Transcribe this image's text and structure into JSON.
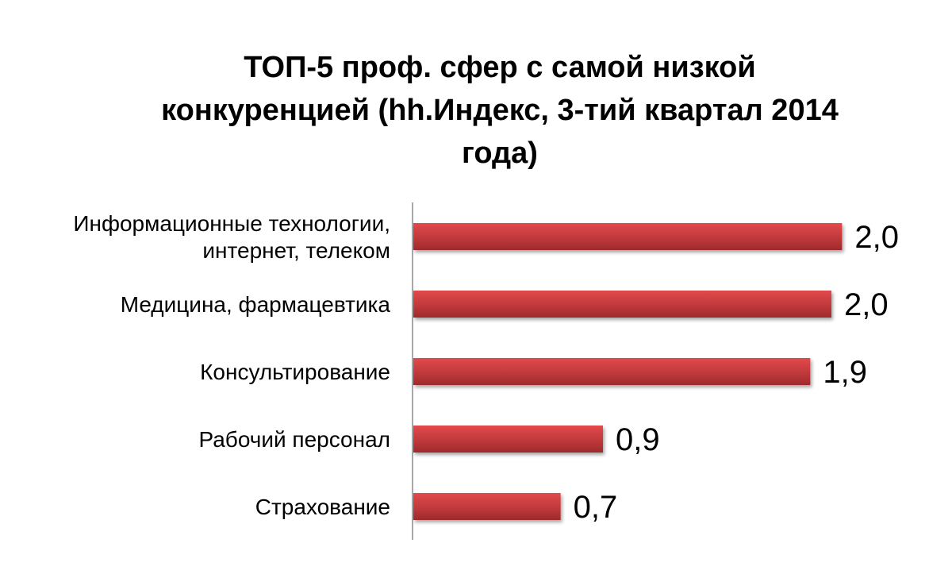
{
  "chart_data": {
    "type": "bar",
    "orientation": "horizontal",
    "title_lines": [
      "ТОП-5 проф. сфер с самой низкой",
      "конкуренцией (hh.Индекс, 3-тий квартал 2014",
      "года)"
    ],
    "categories": [
      [
        "Информационные технологии,",
        "интернет, телеком"
      ],
      [
        "Медицина, фармацевтика"
      ],
      [
        "Консультирование"
      ],
      [
        "Рабочий персонал"
      ],
      [
        "Страхование"
      ]
    ],
    "values": [
      2.03,
      1.98,
      1.88,
      0.9,
      0.7
    ],
    "value_labels": [
      "2,0",
      "2,0",
      "1,9",
      "0,9",
      "0,7"
    ],
    "xlim": [
      0,
      2.1
    ],
    "grid": false,
    "legend": "none",
    "colors": {
      "bar": "#c0393b",
      "bar_light": "#e24a4c",
      "bar_dark": "#9e2a2c",
      "axis": "#8c8c8c"
    }
  }
}
